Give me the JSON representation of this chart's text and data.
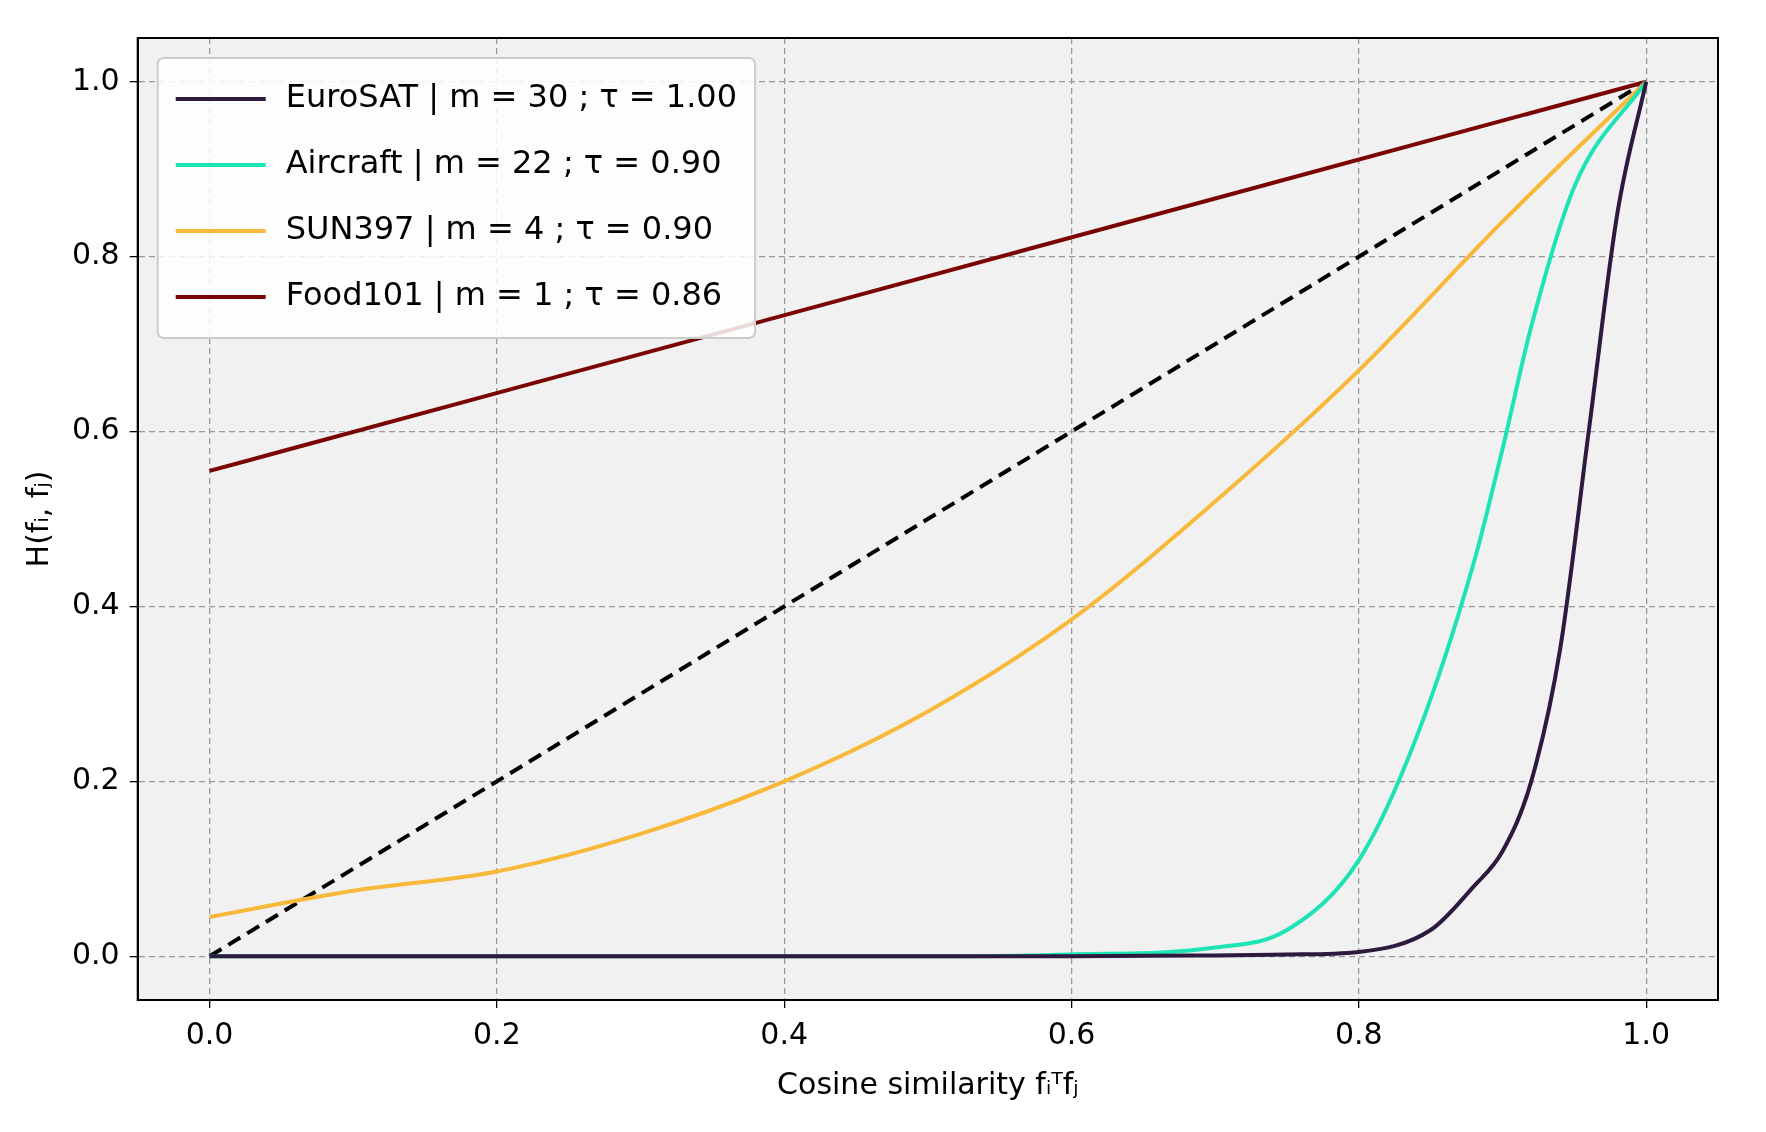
{
  "chart_data": {
    "type": "line",
    "xlabel": "Cosine similarity fᵢᵀfⱼ",
    "ylabel": "H(fᵢ, fⱼ)",
    "xlim": [
      -0.05,
      1.05
    ],
    "ylim": [
      -0.05,
      1.05
    ],
    "xticks": [
      {
        "value": 0,
        "label": "0.0"
      },
      {
        "value": 0.2,
        "label": "0.2"
      },
      {
        "value": 0.4,
        "label": "0.4"
      },
      {
        "value": 0.6,
        "label": "0.6"
      },
      {
        "value": 0.8,
        "label": "0.8"
      },
      {
        "value": 1,
        "label": "1.0"
      }
    ],
    "yticks": [
      {
        "value": 0,
        "label": "0.0"
      },
      {
        "value": 0.2,
        "label": "0.2"
      },
      {
        "value": 0.4,
        "label": "0.4"
      },
      {
        "value": 0.6,
        "label": "0.6"
      },
      {
        "value": 0.8,
        "label": "0.8"
      },
      {
        "value": 1,
        "label": "1.0"
      }
    ],
    "grid": true,
    "legend": "top left",
    "marker": "none",
    "series": [
      {
        "name": "EuroSAT | m = 30 ; τ = 1.00",
        "color": "#2d1a3e",
        "x": [
          0,
          0.6,
          0.7,
          0.75,
          0.8,
          0.85,
          0.88,
          0.9,
          0.92,
          0.94,
          0.96,
          0.98,
          1.0
        ],
        "values": [
          0,
          0,
          0.001,
          0.002,
          0.005,
          0.03,
          0.08,
          0.12,
          0.2,
          0.35,
          0.6,
          0.85,
          1.0
        ]
      },
      {
        "name": "Aircraft | m = 22 ; τ = 0.90",
        "color": "#1ee3b5",
        "x": [
          0,
          0.5,
          0.6,
          0.7,
          0.75,
          0.8,
          0.84,
          0.88,
          0.9,
          0.92,
          0.95,
          1.0
        ],
        "values": [
          0,
          0,
          0.002,
          0.01,
          0.03,
          0.11,
          0.25,
          0.45,
          0.58,
          0.72,
          0.88,
          1.0
        ]
      },
      {
        "name": "SUN397 | m = 4 ; τ = 0.90",
        "color": "#f8b83a",
        "x": [
          0,
          0.1,
          0.2,
          0.3,
          0.4,
          0.5,
          0.6,
          0.7,
          0.8,
          0.9,
          1.0
        ],
        "values": [
          0.045,
          0.075,
          0.097,
          0.14,
          0.2,
          0.28,
          0.385,
          0.52,
          0.67,
          0.84,
          1.0
        ]
      },
      {
        "name": "Food101 | m = 1 ; τ = 0.86",
        "color": "#7a0403",
        "x": [
          0,
          1
        ],
        "values": [
          0.555,
          1.0
        ]
      },
      {
        "color": "#000000",
        "line_style": "dashed",
        "x": [
          0,
          1
        ],
        "values": [
          0,
          1
        ]
      }
    ]
  }
}
